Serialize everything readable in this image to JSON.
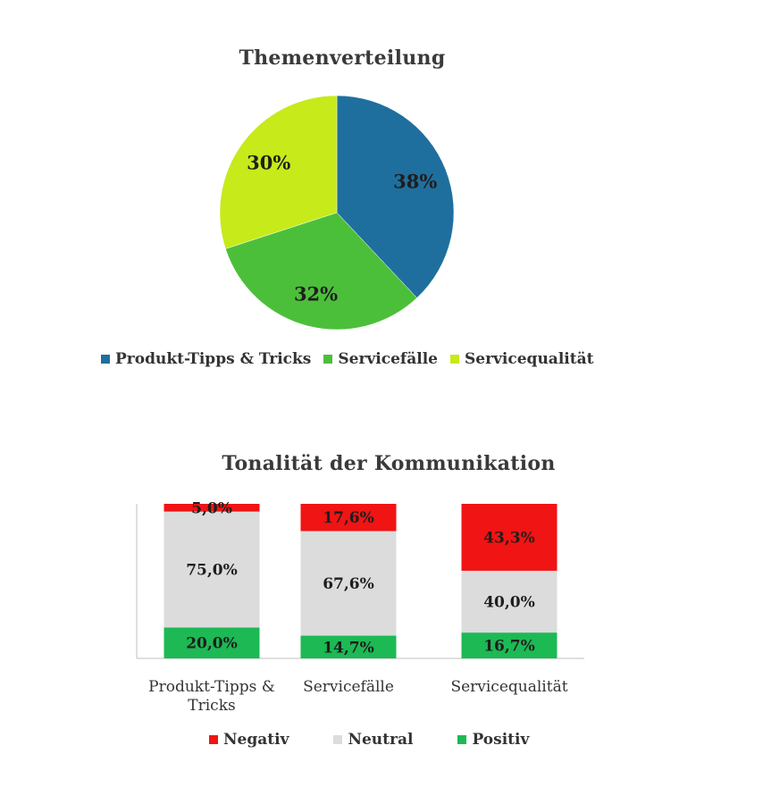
{
  "chart_data": [
    {
      "type": "pie",
      "title": "Themenverteilung",
      "categories": [
        "Produkt-Tipps & Tricks",
        "Servicefälle",
        "Servicequalität"
      ],
      "values": [
        38,
        32,
        30
      ],
      "labels": [
        "38%",
        "32%",
        "30%"
      ],
      "colors": [
        "#1f6f9e",
        "#4cbf3a",
        "#c6ea1a"
      ],
      "legend": "bottom"
    },
    {
      "type": "bar",
      "stacked": true,
      "title": "Tonalität der Kommunikation",
      "categories": [
        "Produkt-Tipps & Tricks",
        "Servicefälle",
        "Servicequalität"
      ],
      "category_lines": [
        [
          "Produkt-Tipps &",
          "Tricks"
        ],
        [
          "Servicefälle"
        ],
        [
          "Servicequalität"
        ]
      ],
      "series": [
        {
          "name": "Positiv",
          "values": [
            20.0,
            14.7,
            16.7
          ],
          "labels": [
            "20,0%",
            "14,7%",
            "16,7%"
          ],
          "color": "#1db954"
        },
        {
          "name": "Neutral",
          "values": [
            75.0,
            67.6,
            40.0
          ],
          "labels": [
            "75,0%",
            "67,6%",
            "40,0%"
          ],
          "color": "#dcdcdc"
        },
        {
          "name": "Negativ",
          "values": [
            5.0,
            17.6,
            43.3
          ],
          "labels": [
            "5,0%",
            "17,6%",
            "43,3%"
          ],
          "color": "#f01414"
        }
      ],
      "legend_order": [
        "Negativ",
        "Neutral",
        "Positiv"
      ],
      "ylim": [
        0,
        100
      ],
      "legend": "bottom"
    }
  ]
}
